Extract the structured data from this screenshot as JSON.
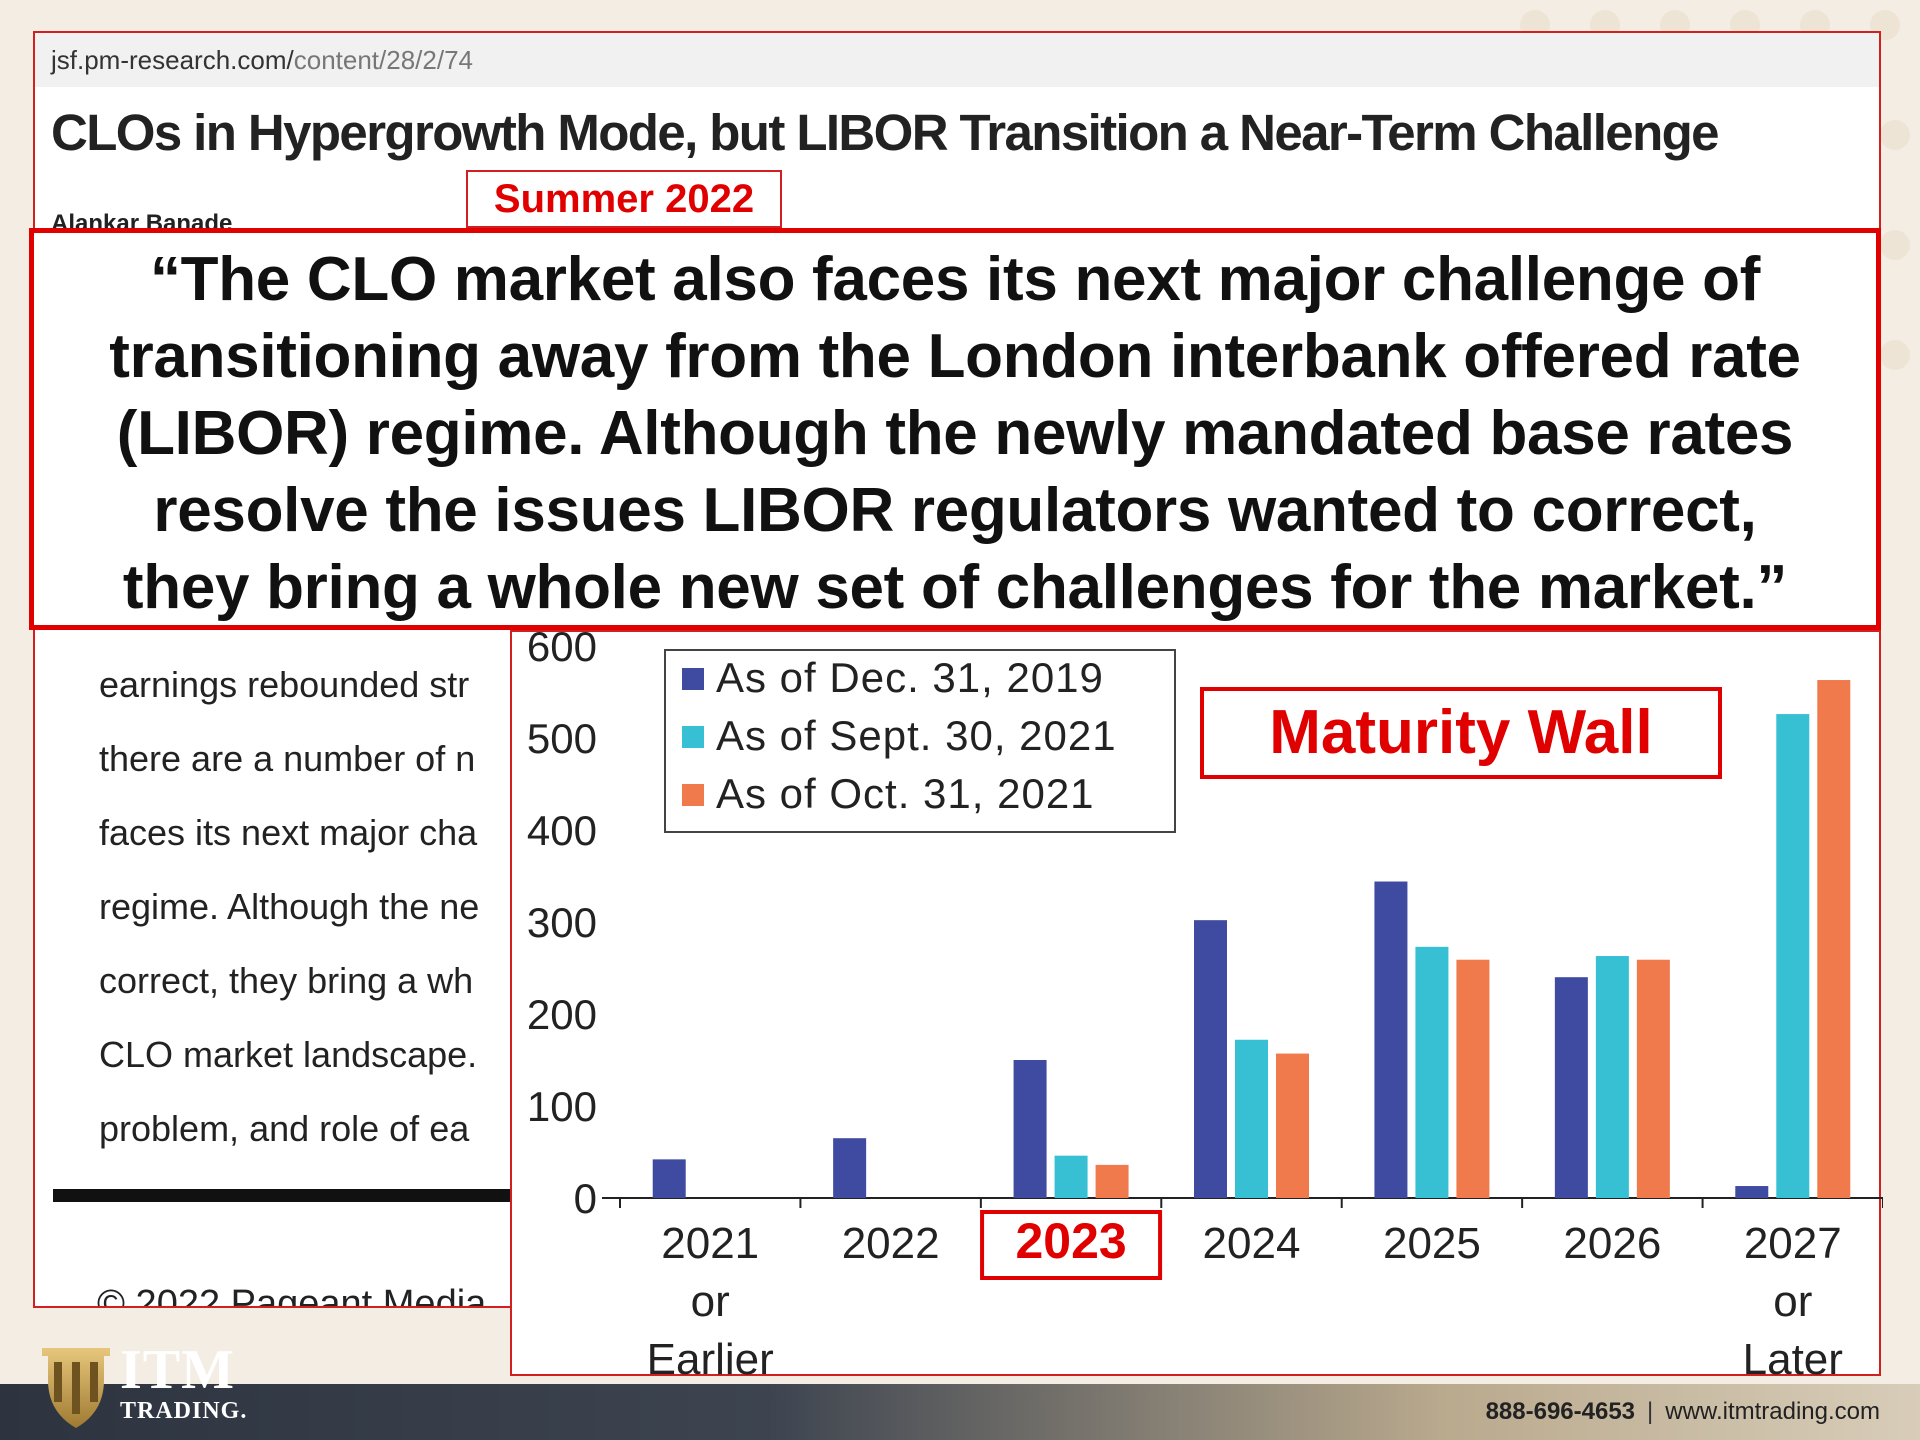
{
  "article": {
    "url_host": "jsf.pm-research.com/",
    "url_path": "content/28/2/74",
    "headline": "CLOs in Hypergrowth Mode, but LIBOR Transition a Near-Term Challenge",
    "author": "Alankar Banade",
    "body_lines": [
      "earnings rebounded str",
      "there are a number of n",
      "faces its next major cha",
      "regime. Although the ne",
      "correct, they bring a wh",
      "CLO market landscape.",
      "problem, and role of ea"
    ],
    "copyright": "© 2022 Pageant Media"
  },
  "season_label": "Summer 2022",
  "quote": {
    "lines": [
      "“The CLO market also faces its next major challenge of",
      "transitioning away from the London interbank offered rate",
      "(LIBOR) regime. Although the newly mandated base rates",
      "resolve the issues LIBOR regulators wanted to correct,",
      "they bring a whole new set of challenges for the market.”"
    ]
  },
  "callout": {
    "label": "Maturity Wall"
  },
  "highlighted_category": "2023",
  "footer": {
    "phone": "888-696-4653",
    "separator": "|",
    "website": "www.itmtrading.com",
    "logo_big": "ITM",
    "logo_small": "TRADING."
  },
  "colors": {
    "accent_red": "#e00000",
    "series_2019": "#3f4ba0",
    "series_2021_sept": "#37bfd3",
    "series_2021_oct": "#f07a4b"
  },
  "chart_data": {
    "type": "bar",
    "categories": [
      [
        "2021",
        "or",
        "Earlier"
      ],
      [
        "2022"
      ],
      [
        "2023"
      ],
      [
        "2024"
      ],
      [
        "2025"
      ],
      [
        "2026"
      ],
      [
        "2027",
        "or",
        "Later"
      ]
    ],
    "series": [
      {
        "name": "As of Dec. 31, 2019",
        "color": "#3f4ba0",
        "values": [
          42,
          65,
          150,
          302,
          344,
          240,
          13
        ]
      },
      {
        "name": "As of Sept. 30, 2021",
        "color": "#37bfd3",
        "values": [
          0,
          0,
          46,
          172,
          273,
          263,
          526
        ]
      },
      {
        "name": "As of Oct. 31, 2021",
        "color": "#f07a4b",
        "values": [
          0,
          0,
          36,
          157,
          259,
          259,
          563
        ]
      }
    ],
    "ylim": [
      0,
      600
    ],
    "yticks": [
      0,
      100,
      200,
      300,
      400,
      500,
      600
    ],
    "legend": "top-left",
    "grid": false
  }
}
